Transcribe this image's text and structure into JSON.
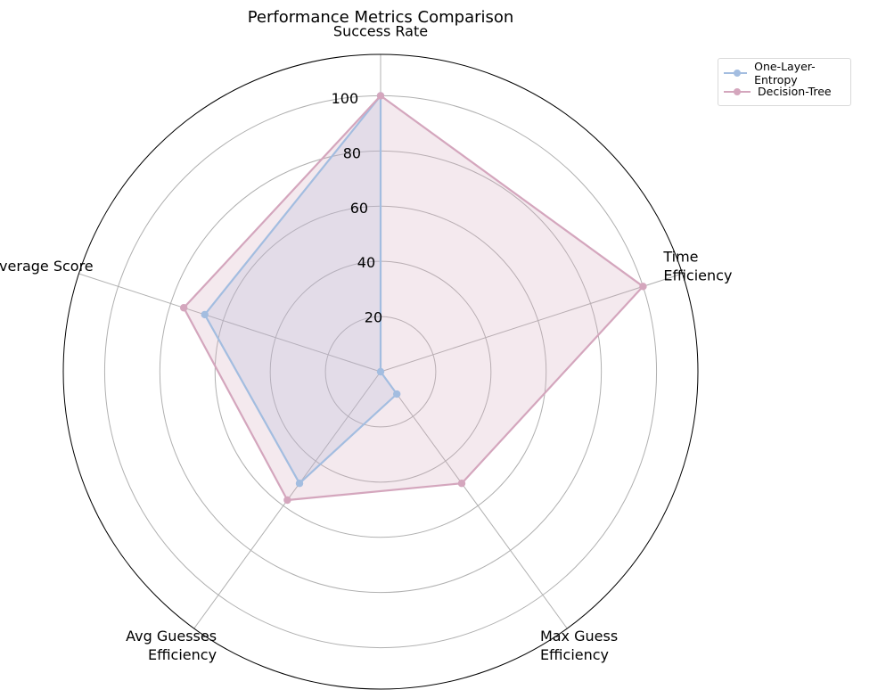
{
  "chart_data": {
    "type": "radar",
    "title": "Performance Metrics Comparison",
    "axes": [
      "Success Rate",
      "Time Efficiency",
      "Max Guess Efficiency",
      "Avg Guesses Efficiency",
      "Average Score"
    ],
    "axis_label_lines": [
      [
        "Success Rate"
      ],
      [
        "Time",
        "Efficiency"
      ],
      [
        "Max Guess",
        "Efficiency"
      ],
      [
        "Avg Guesses",
        "Efficiency"
      ],
      [
        "Average Score"
      ]
    ],
    "rlim": [
      0,
      115
    ],
    "rticks": [
      20,
      40,
      60,
      80,
      100
    ],
    "grid": true,
    "legend_position": "top-right outside",
    "series": [
      {
        "name": "One-Layer-Entropy",
        "color": "#a3bde0",
        "values": [
          100,
          0,
          10,
          50,
          67
        ]
      },
      {
        "name": "Decision-Tree",
        "color": "#d4a6bd",
        "values": [
          100,
          100,
          50,
          57.5,
          75
        ]
      }
    ]
  }
}
